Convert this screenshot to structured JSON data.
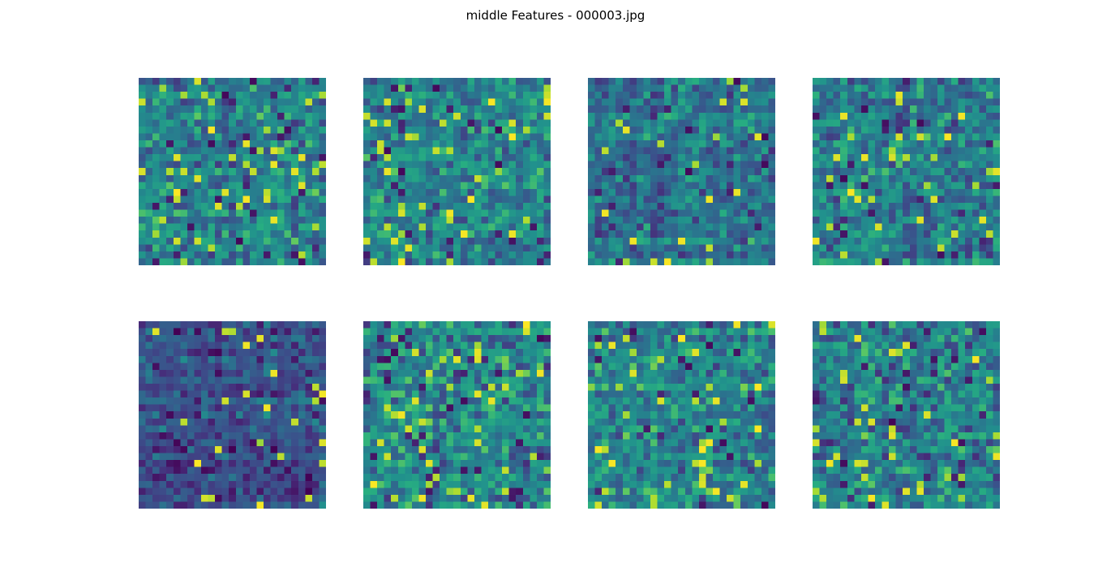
{
  "figure": {
    "title": "middle Features - 000003.jpg"
  },
  "chart_data": {
    "type": "heatmap",
    "title": "middle Features - 000003.jpg",
    "layout": "2 rows x 4 columns",
    "colormap": "viridis",
    "axes_visible": false,
    "grid_size": [
      27,
      27
    ],
    "panels": [
      {
        "seed": 11,
        "mean": 0.45,
        "spread": 0.17,
        "spikes": 0.06
      },
      {
        "seed": 23,
        "mean": 0.47,
        "spread": 0.16,
        "spikes": 0.05
      },
      {
        "seed": 37,
        "mean": 0.4,
        "spread": 0.15,
        "spikes": 0.03
      },
      {
        "seed": 41,
        "mean": 0.42,
        "spread": 0.17,
        "spikes": 0.05
      },
      {
        "seed": 53,
        "mean": 0.28,
        "spread": 0.13,
        "spikes": 0.03
      },
      {
        "seed": 67,
        "mean": 0.5,
        "spread": 0.19,
        "spikes": 0.05
      },
      {
        "seed": 79,
        "mean": 0.47,
        "spread": 0.17,
        "spikes": 0.05
      },
      {
        "seed": 97,
        "mean": 0.45,
        "spread": 0.18,
        "spikes": 0.05
      }
    ]
  }
}
